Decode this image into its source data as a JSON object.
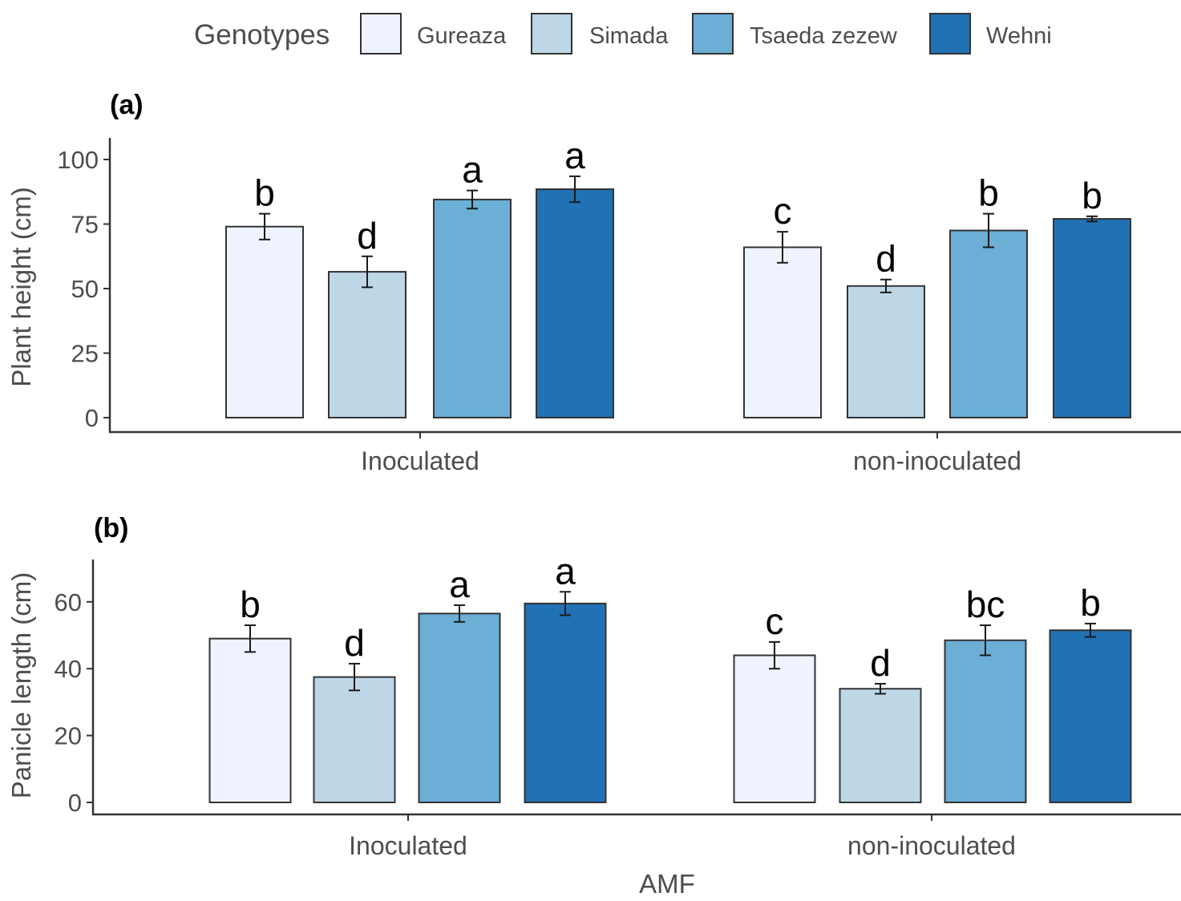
{
  "legend": {
    "title": "Genotypes",
    "items": [
      {
        "label": "Gureaza",
        "color": "#eff3ff"
      },
      {
        "label": "Simada",
        "color": "#bdd7e7"
      },
      {
        "label": "Tsaeda zezew",
        "color": "#6baed6"
      },
      {
        "label": "Wehni",
        "color": "#2171b5"
      }
    ]
  },
  "xlabel": "AMF",
  "chart_data": [
    {
      "type": "bar",
      "panel_label": "(a)",
      "title": "",
      "xlabel": "",
      "ylabel": "Plant height (cm)",
      "categories": [
        "Inoculated",
        "non-inoculated"
      ],
      "ylim": [
        0,
        108
      ],
      "yticks": [
        0,
        25,
        50,
        75,
        100
      ],
      "series": [
        {
          "name": "Gureaza",
          "color": "#eff3ff",
          "values": [
            74,
            66
          ],
          "errors": [
            5,
            6
          ],
          "letters": [
            "b",
            "c"
          ]
        },
        {
          "name": "Simada",
          "color": "#bdd7e7",
          "values": [
            56.5,
            51
          ],
          "errors": [
            6,
            2.5
          ],
          "letters": [
            "d",
            "d"
          ]
        },
        {
          "name": "Tsaeda zezew",
          "color": "#6baed6",
          "values": [
            84.5,
            72.5
          ],
          "errors": [
            3.5,
            6.5
          ],
          "letters": [
            "a",
            "b"
          ]
        },
        {
          "name": "Wehni",
          "color": "#2171b5",
          "values": [
            88.5,
            77
          ],
          "errors": [
            5,
            1
          ],
          "letters": [
            "a",
            "b"
          ]
        }
      ]
    },
    {
      "type": "bar",
      "panel_label": "(b)",
      "title": "",
      "xlabel": "AMF",
      "ylabel": "Panicle length (cm)",
      "categories": [
        "Inoculated",
        "non-inoculated"
      ],
      "ylim": [
        0,
        73
      ],
      "yticks": [
        0,
        20,
        40,
        60
      ],
      "series": [
        {
          "name": "Gureaza",
          "color": "#eff3ff",
          "values": [
            49,
            44
          ],
          "errors": [
            4,
            4
          ],
          "letters": [
            "b",
            "c"
          ]
        },
        {
          "name": "Simada",
          "color": "#bdd7e7",
          "values": [
            37.5,
            34
          ],
          "errors": [
            4,
            1.5
          ],
          "letters": [
            "d",
            "d"
          ]
        },
        {
          "name": "Tsaeda zezew",
          "color": "#6baed6",
          "values": [
            56.5,
            48.5
          ],
          "errors": [
            2.5,
            4.5
          ],
          "letters": [
            "a",
            "bc"
          ]
        },
        {
          "name": "Wehni",
          "color": "#2171b5",
          "values": [
            59.5,
            51.5
          ],
          "errors": [
            3.5,
            2
          ],
          "letters": [
            "a",
            "b"
          ]
        }
      ]
    }
  ]
}
